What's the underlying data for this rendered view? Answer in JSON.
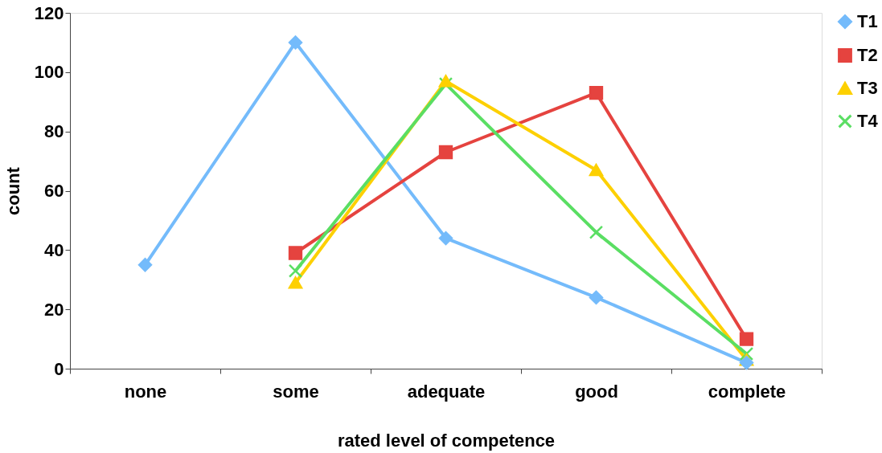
{
  "chart_data": {
    "type": "line",
    "xlabel": "rated level of competence",
    "ylabel": "count",
    "categories": [
      "none",
      "some",
      "adequate",
      "good",
      "complete"
    ],
    "series": [
      {
        "name": "T1",
        "color": "#74bbfb",
        "marker": "diamond",
        "values": [
          35,
          110,
          44,
          24,
          2
        ]
      },
      {
        "name": "T2",
        "color": "#e5433f",
        "marker": "square",
        "values": [
          null,
          39,
          73,
          93,
          10
        ]
      },
      {
        "name": "T3",
        "color": "#fdd000",
        "marker": "triangle",
        "values": [
          null,
          29,
          97,
          67,
          3
        ]
      },
      {
        "name": "T4",
        "color": "#5ade63",
        "marker": "cross",
        "values": [
          null,
          33,
          96,
          46,
          5
        ]
      }
    ],
    "ylim": [
      0,
      120
    ],
    "yticks": [
      0,
      20,
      40,
      60,
      80,
      100,
      120
    ],
    "grid": false,
    "legend": "right",
    "line_style": "solid"
  }
}
